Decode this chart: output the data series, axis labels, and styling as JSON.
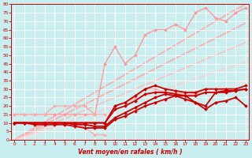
{
  "bg_color": "#c8eef0",
  "grid_color": "#ffffff",
  "xlabel": "Vent moyen/en rafales ( km/h )",
  "x_values": [
    0,
    1,
    2,
    3,
    4,
    5,
    6,
    7,
    8,
    9,
    10,
    11,
    12,
    13,
    14,
    15,
    16,
    17,
    18,
    19,
    20,
    21,
    22,
    23
  ],
  "lines": [
    {
      "y": [
        0,
        3.5,
        7,
        10.5,
        14,
        17.5,
        21,
        24.5,
        28,
        31.5,
        35,
        38.5,
        42,
        45.5,
        49,
        52.5,
        56,
        59.5,
        63,
        66.5,
        70,
        73.5,
        77,
        80
      ],
      "color": "#ffaaaa",
      "lw": 1.2,
      "marker": null,
      "ms": 0,
      "zorder": 1
    },
    {
      "y": [
        0,
        3,
        6,
        9,
        12,
        15,
        18,
        21,
        24,
        27,
        30,
        33,
        36,
        39,
        42,
        45,
        48,
        51,
        54,
        57,
        60,
        63,
        66,
        69
      ],
      "color": "#ffaaaa",
      "lw": 1.2,
      "marker": null,
      "ms": 0,
      "zorder": 1
    },
    {
      "y": [
        0,
        2.5,
        5,
        7.5,
        10,
        12.5,
        15,
        17.5,
        20,
        22.5,
        25,
        27.5,
        30,
        32.5,
        35,
        37.5,
        40,
        42.5,
        45,
        47.5,
        50,
        52.5,
        55,
        57.5
      ],
      "color": "#ffbbbb",
      "lw": 1.0,
      "marker": null,
      "ms": 0,
      "zorder": 1
    },
    {
      "y": [
        0,
        2,
        4,
        6,
        8,
        10,
        12,
        14,
        16,
        18,
        20,
        22,
        24,
        26,
        28,
        30,
        32,
        34,
        36,
        38,
        40,
        42,
        44,
        46
      ],
      "color": "#ffcccc",
      "lw": 1.0,
      "marker": null,
      "ms": 0,
      "zorder": 1
    },
    {
      "y": [
        0,
        1.5,
        3,
        4.5,
        6,
        7.5,
        9,
        10.5,
        12,
        13.5,
        15,
        16.5,
        18,
        19.5,
        21,
        22.5,
        24,
        25.5,
        27,
        28.5,
        30,
        31.5,
        33,
        34.5
      ],
      "color": "#ffdddd",
      "lw": 0.8,
      "marker": null,
      "ms": 0,
      "zorder": 1
    },
    {
      "y": [
        15,
        15,
        15,
        15,
        15,
        15,
        15,
        15,
        15,
        45,
        55,
        45,
        50,
        62,
        65,
        65,
        68,
        65,
        75,
        78,
        72,
        70,
        75,
        78
      ],
      "color": "#ff9999",
      "lw": 1.0,
      "marker": "D",
      "ms": 2.0,
      "zorder": 3
    },
    {
      "y": [
        15,
        15,
        15,
        15,
        20,
        20,
        20,
        20,
        15,
        15,
        null,
        null,
        null,
        null,
        null,
        null,
        null,
        null,
        null,
        null,
        null,
        null,
        null,
        null
      ],
      "color": "#ffaaaa",
      "lw": 1.0,
      "marker": "D",
      "ms": 2.0,
      "zorder": 3
    },
    {
      "y": [
        null,
        null,
        null,
        null,
        null,
        null,
        null,
        null,
        null,
        null,
        20,
        22,
        25,
        30,
        30,
        28,
        28,
        27,
        27,
        30,
        30,
        30,
        null,
        null
      ],
      "color": "#ffaaaa",
      "lw": 1.0,
      "marker": "D",
      "ms": 2.0,
      "zorder": 3
    },
    {
      "y": [
        10,
        10,
        10,
        10,
        10,
        10,
        10,
        10,
        10,
        10,
        20,
        22,
        26,
        30,
        32,
        30,
        29,
        28,
        28,
        30,
        30,
        30,
        30,
        32
      ],
      "color": "#cc0000",
      "lw": 1.3,
      "marker": "D",
      "ms": 2.0,
      "zorder": 4
    },
    {
      "y": [
        10,
        10,
        10,
        10,
        10,
        10,
        10,
        10,
        10,
        10,
        18,
        20,
        23,
        27,
        28,
        28,
        27,
        26,
        26,
        28,
        28,
        29,
        29,
        30
      ],
      "color": "#cc0000",
      "lw": 1.3,
      "marker": "D",
      "ms": 2.0,
      "zorder": 4
    },
    {
      "y": [
        10,
        10,
        10,
        10,
        10,
        10,
        9,
        9,
        8,
        8,
        13,
        16,
        19,
        22,
        25,
        27,
        26,
        26,
        22,
        20,
        28,
        28,
        29,
        30
      ],
      "color": "#cc0000",
      "lw": 1.3,
      "marker": "D",
      "ms": 2.0,
      "zorder": 4
    },
    {
      "y": [
        10,
        10,
        9,
        9,
        9,
        9,
        8,
        7,
        7,
        7,
        12,
        14,
        17,
        20,
        22,
        24,
        26,
        24,
        22,
        18,
        22,
        23,
        25,
        20
      ],
      "color": "#cc0000",
      "lw": 1.3,
      "marker": "D",
      "ms": 2.0,
      "zorder": 4
    },
    {
      "y": [
        10,
        10,
        10,
        10,
        10,
        10,
        10,
        7,
        3,
        3,
        null,
        null,
        null,
        null,
        null,
        null,
        null,
        null,
        null,
        null,
        null,
        null,
        null,
        null
      ],
      "color": "#ffaaaa",
      "lw": 1.0,
      "marker": "D",
      "ms": 2.0,
      "zorder": 3
    }
  ],
  "xlim": [
    -0.3,
    23.3
  ],
  "ylim": [
    0,
    80
  ],
  "yticks": [
    0,
    5,
    10,
    15,
    20,
    25,
    30,
    35,
    40,
    45,
    50,
    55,
    60,
    65,
    70,
    75,
    80
  ],
  "xticks": [
    0,
    1,
    2,
    3,
    4,
    5,
    6,
    7,
    8,
    9,
    10,
    11,
    12,
    13,
    14,
    15,
    16,
    17,
    18,
    19,
    20,
    21,
    22,
    23
  ],
  "tick_color": "#cc0000",
  "label_color": "#cc0000",
  "axis_color": "#cc0000"
}
